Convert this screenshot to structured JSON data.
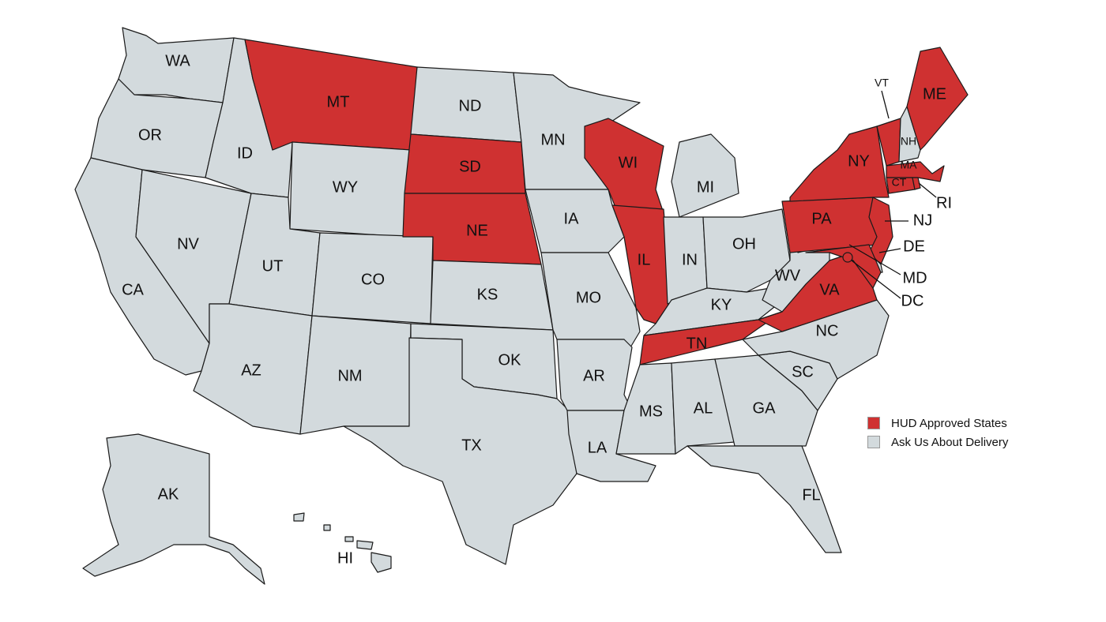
{
  "colors": {
    "approved": "#cf3131",
    "other": "#d3dadd"
  },
  "legend": [
    {
      "label": "HUD Approved States",
      "category": "approved"
    },
    {
      "label": "Ask Us About Delivery",
      "category": "other"
    }
  ],
  "states": [
    {
      "code": "WA",
      "approved": false
    },
    {
      "code": "OR",
      "approved": false
    },
    {
      "code": "CA",
      "approved": false
    },
    {
      "code": "NV",
      "approved": false
    },
    {
      "code": "ID",
      "approved": false
    },
    {
      "code": "MT",
      "approved": true
    },
    {
      "code": "WY",
      "approved": false
    },
    {
      "code": "UT",
      "approved": false
    },
    {
      "code": "CO",
      "approved": false
    },
    {
      "code": "AZ",
      "approved": false
    },
    {
      "code": "NM",
      "approved": false
    },
    {
      "code": "ND",
      "approved": false
    },
    {
      "code": "SD",
      "approved": true
    },
    {
      "code": "NE",
      "approved": true
    },
    {
      "code": "KS",
      "approved": false
    },
    {
      "code": "OK",
      "approved": false
    },
    {
      "code": "TX",
      "approved": false
    },
    {
      "code": "MN",
      "approved": false
    },
    {
      "code": "IA",
      "approved": false
    },
    {
      "code": "MO",
      "approved": false
    },
    {
      "code": "AR",
      "approved": false
    },
    {
      "code": "LA",
      "approved": false
    },
    {
      "code": "WI",
      "approved": true
    },
    {
      "code": "IL",
      "approved": true
    },
    {
      "code": "MI",
      "approved": false
    },
    {
      "code": "IN",
      "approved": false
    },
    {
      "code": "OH",
      "approved": false
    },
    {
      "code": "KY",
      "approved": false
    },
    {
      "code": "TN",
      "approved": true
    },
    {
      "code": "MS",
      "approved": false
    },
    {
      "code": "AL",
      "approved": false
    },
    {
      "code": "GA",
      "approved": false
    },
    {
      "code": "FL",
      "approved": false
    },
    {
      "code": "SC",
      "approved": false
    },
    {
      "code": "NC",
      "approved": false
    },
    {
      "code": "VA",
      "approved": true
    },
    {
      "code": "WV",
      "approved": false
    },
    {
      "code": "PA",
      "approved": true
    },
    {
      "code": "NY",
      "approved": true
    },
    {
      "code": "NJ",
      "approved": true
    },
    {
      "code": "DE",
      "approved": false
    },
    {
      "code": "MD",
      "approved": true
    },
    {
      "code": "DC",
      "approved": true
    },
    {
      "code": "VT",
      "approved": true
    },
    {
      "code": "NH",
      "approved": false
    },
    {
      "code": "ME",
      "approved": true
    },
    {
      "code": "MA",
      "approved": true
    },
    {
      "code": "CT",
      "approved": true
    },
    {
      "code": "RI",
      "approved": true
    },
    {
      "code": "AK",
      "approved": false
    },
    {
      "code": "HI",
      "approved": false
    }
  ]
}
